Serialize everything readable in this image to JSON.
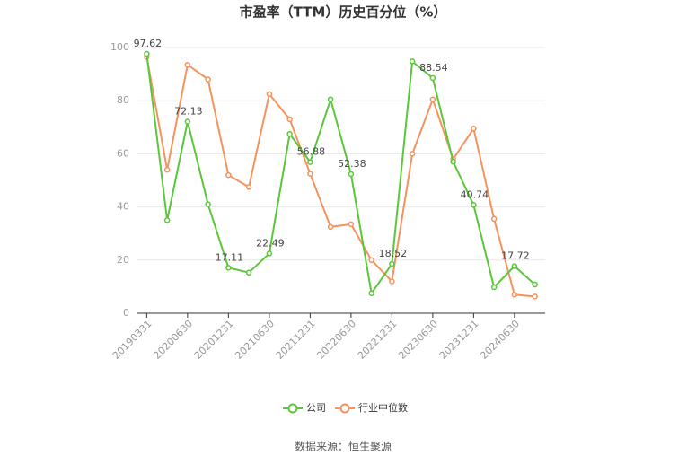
{
  "chart_data": {
    "type": "line",
    "title": "市盈率（TTM）历史百分位（%）",
    "categories": [
      "20190331",
      null,
      "20200630",
      null,
      "20201231",
      null,
      "20210630",
      null,
      "20211231",
      null,
      "20220630",
      null,
      "20221231",
      null,
      "20230630",
      null,
      "20231231",
      null,
      "20240630",
      null
    ],
    "series": [
      {
        "name": "公司",
        "color": "#5ac73a",
        "values": [
          97.62,
          35,
          72.13,
          41,
          17.11,
          15.3,
          22.49,
          67.5,
          56.88,
          80.5,
          52.38,
          7.5,
          18.52,
          94.8,
          88.54,
          57,
          40.74,
          9.8,
          17.72,
          10.8
        ],
        "value_labels": [
          "97.62",
          null,
          "72.13",
          null,
          "17.11",
          null,
          "22.49",
          null,
          "56.88",
          null,
          "52.38",
          null,
          "18.52",
          null,
          "88.54",
          null,
          "40.74",
          null,
          "17.72",
          null
        ]
      },
      {
        "name": "行业中位数",
        "color": "#f5925e",
        "values": [
          96.5,
          54,
          93.5,
          88,
          52,
          47.5,
          82.5,
          73,
          52.5,
          32.5,
          33.5,
          20,
          12,
          60,
          80.5,
          58,
          69.5,
          35.5,
          7,
          6.3
        ]
      }
    ],
    "ylim": [
      0,
      100
    ],
    "yticks": [
      0,
      20,
      40,
      60,
      80,
      100
    ],
    "grid": true,
    "legend": "bottom",
    "source": "数据来源：恒生聚源"
  }
}
